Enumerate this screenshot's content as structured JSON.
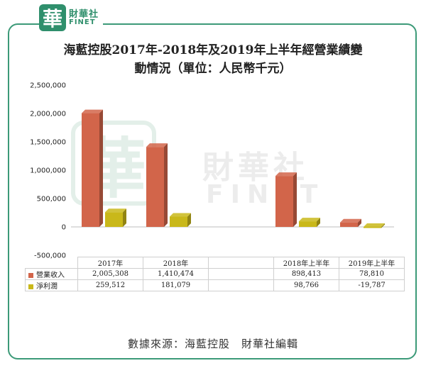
{
  "logo": {
    "seal_char": "華",
    "cn": "財華社",
    "en": "FINET"
  },
  "watermark": {
    "seal_char": "華",
    "cn": "財華社",
    "en": "FINET"
  },
  "chart_data": {
    "type": "bar",
    "title_lines": [
      "海藍控股2017年-2018年及2019年上半年經營業績變",
      "動情況（單位：人民幣千元）"
    ],
    "categories": [
      "2017年",
      "2018年",
      "",
      "2018年上半年",
      "2019年上半年"
    ],
    "y_ticks": [
      "2,500,000",
      "2,000,000",
      "1,500,000",
      "1,000,000",
      "500,000",
      "0",
      "-500,000"
    ],
    "ylim": [
      -500000,
      2500000
    ],
    "grid": false,
    "legend_placement": "data-table",
    "series": [
      {
        "name": "營業收入",
        "color": "#d2654a",
        "values": [
          2005308,
          1410474,
          null,
          898413,
          78810
        ],
        "labels": [
          "2,005,308",
          "1,410,474",
          "",
          "898,413",
          "78,810"
        ]
      },
      {
        "name": "淨利潤",
        "color": "#c9b81a",
        "values": [
          259512,
          181079,
          null,
          98766,
          -19787
        ],
        "labels": [
          "259,512",
          "181,079",
          "",
          "98,766",
          "-19,787"
        ]
      }
    ]
  },
  "source": "數據來源：海藍控股　財華社編輯"
}
